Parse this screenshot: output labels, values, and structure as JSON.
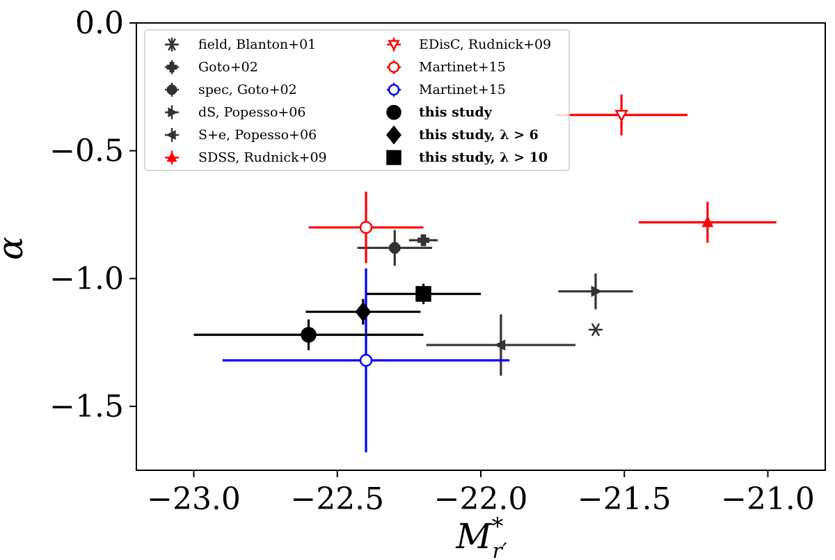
{
  "chart_data": {
    "type": "scatter",
    "title": "",
    "xlabel": "M*_{r'}",
    "xlabel_main": "M",
    "xlabel_sup": "*",
    "xlabel_sub": "r′",
    "ylabel": "α",
    "xlim": [
      -23.2,
      -20.8
    ],
    "ylim": [
      -1.75,
      0.0
    ],
    "xticks": [
      {
        "value": -23.0,
        "label": "−23.0"
      },
      {
        "value": -22.5,
        "label": "−22.5"
      },
      {
        "value": -22.0,
        "label": "−22.0"
      },
      {
        "value": -21.5,
        "label": "−21.5"
      },
      {
        "value": -21.0,
        "label": "−21.0"
      }
    ],
    "yticks": [
      {
        "value": 0.0,
        "label": "0.0"
      },
      {
        "value": -0.5,
        "label": "−0.5"
      },
      {
        "value": -1.0,
        "label": "−1.0"
      },
      {
        "value": -1.5,
        "label": "−1.5"
      }
    ],
    "legend_position": "top-left",
    "series": [
      {
        "name": "field, Blanton+01",
        "marker": "asterisk",
        "color": "#333333",
        "filled": true,
        "bold": false,
        "points": [
          {
            "x": -21.6,
            "y": -1.2,
            "xerr": 0,
            "yerr": 0
          }
        ]
      },
      {
        "name": "Goto+02",
        "marker": "plus-square",
        "color": "#333333",
        "filled": true,
        "bold": false,
        "points": [
          {
            "x": -22.2,
            "y": -0.85,
            "xerr": 0.05,
            "yerr": 0.02
          }
        ]
      },
      {
        "name": "spec, Goto+02",
        "marker": "octagon",
        "color": "#333333",
        "filled": true,
        "bold": false,
        "points": [
          {
            "x": -22.3,
            "y": -0.88,
            "xerr": 0.13,
            "yerr": 0.07
          }
        ]
      },
      {
        "name": "dS, Popesso+06",
        "marker": "triangle-right",
        "color": "#333333",
        "filled": true,
        "bold": false,
        "points": [
          {
            "x": -21.6,
            "y": -1.05,
            "xerr": 0.13,
            "yerr": 0.07
          }
        ]
      },
      {
        "name": "S+e, Popesso+06",
        "marker": "triangle-left",
        "color": "#333333",
        "filled": true,
        "bold": false,
        "points": [
          {
            "x": -21.93,
            "y": -1.26,
            "xerr": 0.26,
            "yerr": 0.12
          }
        ]
      },
      {
        "name": "SDSS, Rudnick+09",
        "marker": "triangle-up",
        "color": "#ff0000",
        "filled": true,
        "bold": false,
        "points": [
          {
            "x": -21.21,
            "y": -0.78,
            "xerr": 0.24,
            "yerr": 0.08
          }
        ]
      },
      {
        "name": "EDisC, Rudnick+09",
        "marker": "triangle-down",
        "color": "#ff0000",
        "filled": false,
        "bold": false,
        "points": [
          {
            "x": -21.51,
            "y": -0.36,
            "xerr": 0.23,
            "yerr": 0.08
          }
        ]
      },
      {
        "name": "Martinet+15",
        "marker": "circle",
        "color": "#ff0000",
        "filled": false,
        "bold": false,
        "points": [
          {
            "x": -22.4,
            "y": -0.8,
            "xerr": 0.2,
            "yerr": 0.14
          }
        ]
      },
      {
        "name": "Martinet+15",
        "marker": "circle",
        "color": "#0000ff",
        "filled": false,
        "bold": false,
        "points": [
          {
            "x": -22.4,
            "y": -1.32,
            "xerr": 0.5,
            "yerr": 0.36
          }
        ]
      },
      {
        "name": "this study",
        "marker": "circle",
        "color": "#000000",
        "filled": true,
        "bold": true,
        "points": [
          {
            "x": -22.6,
            "y": -1.22,
            "xerr": 0.4,
            "yerr": 0.06
          }
        ]
      },
      {
        "name": "this study, λ > 6",
        "marker": "diamond",
        "color": "#000000",
        "filled": true,
        "bold": true,
        "points": [
          {
            "x": -22.41,
            "y": -1.13,
            "xerr": 0.2,
            "yerr": 0.05
          }
        ]
      },
      {
        "name": "this study, λ > 10",
        "marker": "square",
        "color": "#000000",
        "filled": true,
        "bold": true,
        "points": [
          {
            "x": -22.2,
            "y": -1.06,
            "xerr": 0.2,
            "yerr": 0.04
          }
        ]
      }
    ]
  }
}
